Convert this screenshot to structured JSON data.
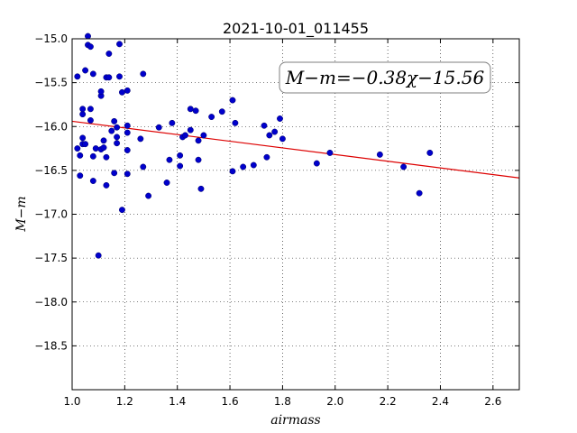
{
  "chart_data": {
    "type": "scatter",
    "title": "2021-10-01_011455",
    "xlabel": "airmass",
    "ylabel": "M−m",
    "xlim": [
      1.0,
      2.7
    ],
    "ylim": [
      -19.0,
      -15.0
    ],
    "y_inverted": true,
    "grid": true,
    "x_ticks": [
      "1.0",
      "1.2",
      "1.4",
      "1.6",
      "1.8",
      "2.0",
      "2.2",
      "2.4",
      "2.6"
    ],
    "y_ticks": [
      "−15.0",
      "−15.5",
      "−16.0",
      "−16.5",
      "−17.0",
      "−17.5",
      "−18.0",
      "−18.5"
    ],
    "y_tick_values": [
      -15.0,
      -15.5,
      -16.0,
      -16.5,
      -17.0,
      -17.5,
      -18.0,
      -18.5
    ],
    "x_tick_values": [
      1.0,
      1.2,
      1.4,
      1.6,
      1.8,
      2.0,
      2.2,
      2.4,
      2.6
    ],
    "annotation": "M−m=−0.38χ−15.56",
    "annotation_position": "top-right",
    "point_color": "#0000cc",
    "line_color": "#dd0000",
    "fit": {
      "slope": -0.38,
      "intercept": -15.56
    },
    "points": [
      [
        1.02,
        -16.25
      ],
      [
        1.02,
        -15.43
      ],
      [
        1.03,
        -16.33
      ],
      [
        1.03,
        -16.56
      ],
      [
        1.04,
        -15.86
      ],
      [
        1.04,
        -15.8
      ],
      [
        1.04,
        -16.2
      ],
      [
        1.04,
        -16.13
      ],
      [
        1.05,
        -15.36
      ],
      [
        1.05,
        -16.2
      ],
      [
        1.06,
        -14.97
      ],
      [
        1.06,
        -15.07
      ],
      [
        1.07,
        -15.09
      ],
      [
        1.07,
        -15.8
      ],
      [
        1.07,
        -15.93
      ],
      [
        1.08,
        -16.34
      ],
      [
        1.08,
        -16.62
      ],
      [
        1.08,
        -15.4
      ],
      [
        1.09,
        -16.25
      ],
      [
        1.1,
        -17.47
      ],
      [
        1.11,
        -16.26
      ],
      [
        1.11,
        -15.65
      ],
      [
        1.11,
        -15.6
      ],
      [
        1.12,
        -16.16
      ],
      [
        1.12,
        -16.24
      ],
      [
        1.13,
        -16.35
      ],
      [
        1.13,
        -16.67
      ],
      [
        1.13,
        -15.44
      ],
      [
        1.14,
        -15.44
      ],
      [
        1.14,
        -15.17
      ],
      [
        1.15,
        -16.05
      ],
      [
        1.16,
        -15.94
      ],
      [
        1.16,
        -16.53
      ],
      [
        1.17,
        -16.01
      ],
      [
        1.17,
        -16.12
      ],
      [
        1.17,
        -16.19
      ],
      [
        1.18,
        -15.43
      ],
      [
        1.18,
        -15.06
      ],
      [
        1.19,
        -15.61
      ],
      [
        1.19,
        -16.95
      ],
      [
        1.21,
        -15.59
      ],
      [
        1.21,
        -15.99
      ],
      [
        1.21,
        -16.07
      ],
      [
        1.21,
        -16.27
      ],
      [
        1.21,
        -16.54
      ],
      [
        1.26,
        -16.14
      ],
      [
        1.27,
        -16.46
      ],
      [
        1.27,
        -15.4
      ],
      [
        1.29,
        -16.79
      ],
      [
        1.33,
        -16.01
      ],
      [
        1.36,
        -16.64
      ],
      [
        1.37,
        -16.38
      ],
      [
        1.38,
        -15.96
      ],
      [
        1.41,
        -16.33
      ],
      [
        1.41,
        -16.45
      ],
      [
        1.42,
        -16.12
      ],
      [
        1.43,
        -16.1
      ],
      [
        1.45,
        -16.04
      ],
      [
        1.45,
        -15.8
      ],
      [
        1.47,
        -15.82
      ],
      [
        1.48,
        -16.38
      ],
      [
        1.48,
        -16.16
      ],
      [
        1.49,
        -16.71
      ],
      [
        1.5,
        -16.1
      ],
      [
        1.53,
        -15.89
      ],
      [
        1.57,
        -15.83
      ],
      [
        1.61,
        -15.7
      ],
      [
        1.61,
        -16.51
      ],
      [
        1.62,
        -15.96
      ],
      [
        1.65,
        -16.46
      ],
      [
        1.69,
        -16.44
      ],
      [
        1.73,
        -15.99
      ],
      [
        1.74,
        -16.35
      ],
      [
        1.75,
        -16.1
      ],
      [
        1.77,
        -16.06
      ],
      [
        1.79,
        -15.91
      ],
      [
        1.8,
        -16.14
      ],
      [
        1.93,
        -16.42
      ],
      [
        1.98,
        -16.3
      ],
      [
        2.17,
        -16.32
      ],
      [
        2.26,
        -16.46
      ],
      [
        2.32,
        -16.76
      ],
      [
        2.36,
        -16.3
      ]
    ]
  }
}
